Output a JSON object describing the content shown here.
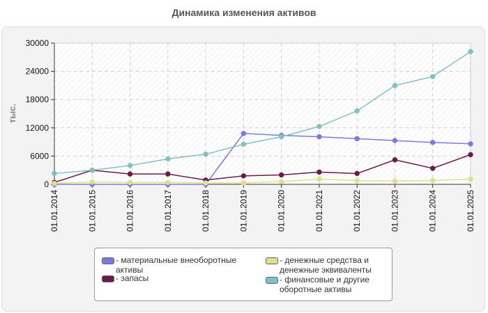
{
  "title": "Динамика изменения активов",
  "chart_data": {
    "type": "line",
    "title": "Динамика изменения активов",
    "xlabel": "",
    "ylabel": "тыс.",
    "ylim": [
      0,
      30000
    ],
    "yticks": [
      "0",
      "6000",
      "12000",
      "18000",
      "24000",
      "30000"
    ],
    "categories": [
      "01.01.2014",
      "01.01.2015",
      "01.01.2016",
      "01.01.2017",
      "01.01.2018",
      "01.01.2019",
      "01.01.2020",
      "01.01.2021",
      "01.01.2022",
      "01.01.2023",
      "01.01.2024",
      "01.01.2025"
    ],
    "grid": true,
    "legend_position": "bottom",
    "series": [
      {
        "name": "- материальные внеоборотные активы",
        "color": "#7b79e0",
        "values": [
          0,
          0,
          0,
          0,
          0,
          10800,
          10400,
          10100,
          9700,
          9300,
          8900,
          8600
        ]
      },
      {
        "name": "- запасы",
        "color": "#6b1a4a",
        "values": [
          400,
          3000,
          2200,
          2200,
          900,
          1800,
          2000,
          2600,
          2300,
          5200,
          3400,
          6300
        ]
      },
      {
        "name": "- денежные средства и денежные эквиваленты",
        "color": "#e0e08a",
        "values": [
          200,
          500,
          400,
          400,
          300,
          300,
          600,
          1100,
          800,
          700,
          800,
          1100
        ]
      },
      {
        "name": "- финансовые и другие оборотные активы",
        "color": "#80c0c0",
        "values": [
          2300,
          3000,
          4000,
          5400,
          6400,
          8500,
          10100,
          12300,
          15600,
          21000,
          22900,
          28200
        ]
      }
    ]
  },
  "legend": {
    "items": [
      {
        "label": "- материальные внеоборотные активы",
        "color": "#7b79e0"
      },
      {
        "label": "- запасы",
        "color": "#6b1a4a"
      },
      {
        "label": "- денежные средства и денежные эквиваленты",
        "color": "#e0e08a"
      },
      {
        "label": "- финансовые и другие оборотные активы",
        "color": "#80c0c0"
      }
    ]
  }
}
